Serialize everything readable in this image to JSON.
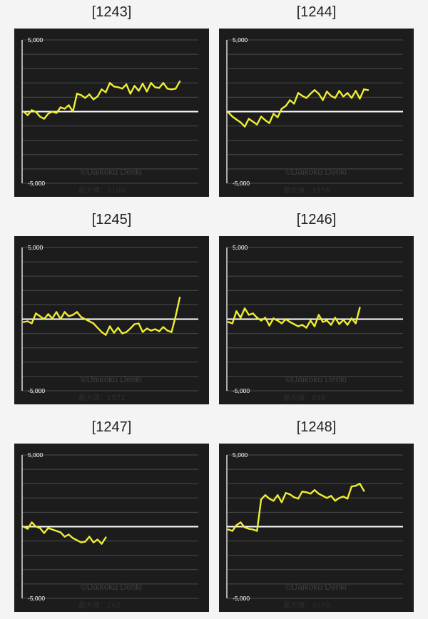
{
  "watermark": "©Daikoku Denki",
  "max_label_prefix": "最大値：",
  "colors": {
    "background": "#1c1c1c",
    "line": "#eeee33",
    "zero_line": "#ffffff",
    "grid": "#4a4a4a",
    "axis": "#dddddd"
  },
  "chart_data": [
    {
      "type": "line",
      "title": "[1243]",
      "ylim": [
        -5000,
        5000
      ],
      "y_tick_labels": [
        "5,000",
        "-5,000"
      ],
      "max_value": "2108",
      "y": [
        0,
        -250,
        100,
        -20,
        -350,
        -500,
        -150,
        0,
        -100,
        300,
        200,
        450,
        0,
        1250,
        1150,
        950,
        1200,
        850,
        1050,
        1550,
        1350,
        2000,
        1750,
        1700,
        1600,
        1900,
        1250,
        1800,
        1450,
        1950,
        1400,
        2000,
        1700,
        1650,
        2000,
        1600,
        1550,
        1600,
        2100
      ]
    },
    {
      "type": "line",
      "title": "[1244]",
      "ylim": [
        -5000,
        5000
      ],
      "y": [
        -50,
        -350,
        -550,
        -750,
        -1050,
        -500,
        -700,
        -900,
        -350,
        -600,
        -800,
        -150,
        -400,
        200,
        400,
        800,
        550,
        1300,
        1100,
        950,
        1250,
        1500,
        1250,
        800,
        1400,
        1100,
        950,
        1450,
        1050,
        1300,
        950,
        1450,
        900,
        1550,
        1500
      ],
      "y_tick_labels": [
        "5,000",
        "-5,000"
      ],
      "max_value": "1556"
    },
    {
      "type": "line",
      "title": "[1245]",
      "ylim": [
        -5000,
        5000
      ],
      "y_tick_labels": [
        "5,000",
        "-5,000"
      ],
      "max_value": "1572",
      "y": [
        -200,
        -150,
        -300,
        400,
        200,
        0,
        350,
        50,
        500,
        0,
        500,
        200,
        300,
        500,
        150,
        0,
        -150,
        -300,
        -600,
        -900,
        -1100,
        -500,
        -950,
        -600,
        -1000,
        -900,
        -650,
        -350,
        -300,
        -900,
        -650,
        -800,
        -700,
        -850,
        -550,
        -800,
        -900,
        200,
        1500
      ]
    },
    {
      "type": "line",
      "title": "[1246]",
      "ylim": [
        -5000,
        5000
      ],
      "y_tick_labels": [
        "5,000",
        "-5,000"
      ],
      "max_value": "838",
      "y": [
        -200,
        -300,
        550,
        100,
        750,
        300,
        400,
        100,
        -100,
        100,
        -450,
        50,
        -100,
        -300,
        0,
        -200,
        -350,
        -500,
        -400,
        -600,
        -100,
        -500,
        300,
        -200,
        -100,
        -400,
        100,
        -350,
        -50,
        -400,
        50,
        -300,
        800
      ]
    },
    {
      "type": "line",
      "title": "[1247]",
      "ylim": [
        -5000,
        5000
      ],
      "y_tick_labels": [
        "5,000",
        "-5,000"
      ],
      "max_value": "262",
      "y": [
        0,
        -150,
        300,
        0,
        -100,
        -450,
        -100,
        -200,
        -300,
        -400,
        -700,
        -550,
        -800,
        -950,
        -1100,
        -1050,
        -700,
        -1100,
        -900,
        -1200,
        -750
      ]
    },
    {
      "type": "line",
      "title": "[1248]",
      "ylim": [
        -5000,
        5000
      ],
      "y_tick_labels": [
        "5,000",
        "-5,000"
      ],
      "max_value": "3070",
      "y": [
        -200,
        -300,
        100,
        300,
        -50,
        -150,
        -200,
        -300,
        1900,
        2200,
        1950,
        1800,
        2200,
        1700,
        2350,
        2250,
        2050,
        1950,
        2450,
        2400,
        2300,
        2550,
        2300,
        2150,
        2000,
        2150,
        1800,
        2000,
        2100,
        1950,
        2800,
        2850,
        3000,
        2500
      ]
    }
  ]
}
